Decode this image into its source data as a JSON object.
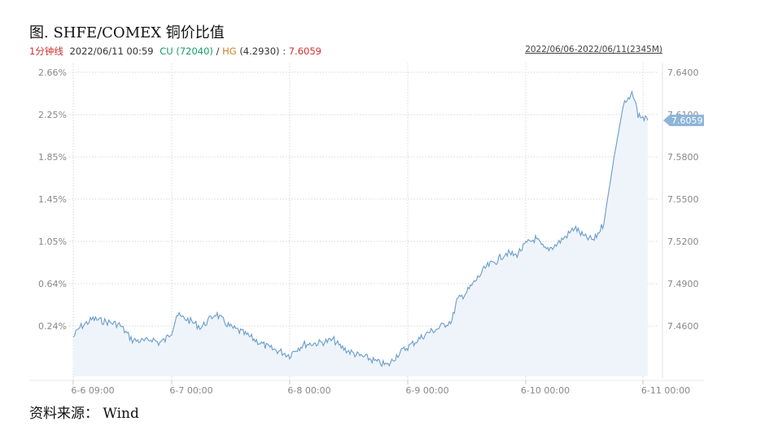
{
  "header": {
    "title": "图. SHFE/COMEX 铜价比值",
    "interval": "1分钟线",
    "timestamp": "2022/06/11 00:59",
    "cu_label": "CU",
    "cu_value": "(72040)",
    "separator": "/",
    "hg_label": "HG",
    "hg_value": "(4.2930)",
    "ratio_sep": ":",
    "ratio_value": "7.6059",
    "date_range": "2022/06/06-2022/06/11(2345M)"
  },
  "footer": {
    "source": "资料来源： Wind"
  },
  "colors": {
    "line": "#6b9ccb",
    "fill": "#eef4fa",
    "interval": "#d03030",
    "cu": "#1a9a6a",
    "hg": "#d08020",
    "ratio": "#d03030",
    "badge": "#8db4d9"
  },
  "chart_data": {
    "type": "area",
    "current_value_badge": "7.6059",
    "x_tick_labels": [
      "6-6 09:00",
      "6-7 00:00",
      "6-8 00:00",
      "6-9 00:00",
      "6-10 00:00",
      "6-11 00:00"
    ],
    "left_axis_labels": [
      "2.66%",
      "2.25%",
      "1.85%",
      "1.45%",
      "1.05%",
      "0.64%",
      "0.24%"
    ],
    "right_axis_labels": [
      "7.6400",
      "7.6100",
      "7.5800",
      "7.5500",
      "7.5200",
      "7.4900",
      "7.4600"
    ],
    "ylim": [
      7.43,
      7.64
    ],
    "grid": true,
    "series": [
      {
        "x": [
          "6-6 09:00",
          "6-6 10:00",
          "6-6 12:00",
          "6-6 14:00",
          "6-6 16:00",
          "6-6 18:00",
          "6-6 20:00",
          "6-6 21:00",
          "6-6 22:00",
          "6-6 23:00",
          "6-7 00:00",
          "6-7 01:00",
          "6-7 02:00",
          "6-7 03:00",
          "6-7 06:00",
          "6-7 09:00",
          "6-7 10:00",
          "6-7 12:00",
          "6-7 14:00",
          "6-7 16:00",
          "6-7 18:00",
          "6-7 20:00",
          "6-7 22:00",
          "6-8 00:00",
          "6-8 01:00",
          "6-8 02:00",
          "6-8 03:00",
          "6-8 06:00",
          "6-8 09:00",
          "6-8 10:00",
          "6-8 12:00",
          "6-8 14:00",
          "6-8 16:00",
          "6-8 18:00",
          "6-8 20:00",
          "6-8 22:00",
          "6-9 00:00",
          "6-9 02:00",
          "6-9 04:00",
          "6-9 06:00",
          "6-9 09:00",
          "6-9 10:00",
          "6-9 12:00",
          "6-9 14:00",
          "6-9 16:00",
          "6-9 18:00",
          "6-9 20:00",
          "6-9 22:00",
          "6-10 00:00",
          "6-10 02:00",
          "6-10 04:00",
          "6-10 06:00",
          "6-10 09:00",
          "6-10 10:00",
          "6-10 12:00",
          "6-10 14:00",
          "6-10 16:00",
          "6-10 18:00",
          "6-10 20:00",
          "6-10 21:00",
          "6-10 22:00",
          "6-10 23:00",
          "6-11 00:00",
          "6-11 00:59"
        ],
        "values": [
          7.452,
          7.459,
          7.465,
          7.463,
          7.461,
          7.45,
          7.449,
          7.451,
          7.448,
          7.45,
          7.456,
          7.468,
          7.466,
          7.465,
          7.459,
          7.469,
          7.465,
          7.459,
          7.456,
          7.452,
          7.448,
          7.444,
          7.442,
          7.439,
          7.443,
          7.445,
          7.447,
          7.448,
          7.45,
          7.446,
          7.442,
          7.439,
          7.437,
          7.434,
          7.432,
          7.44,
          7.445,
          7.45,
          7.455,
          7.458,
          7.464,
          7.478,
          7.484,
          7.493,
          7.502,
          7.506,
          7.512,
          7.51,
          7.518,
          7.522,
          7.514,
          7.517,
          7.526,
          7.53,
          7.523,
          7.521,
          7.533,
          7.578,
          7.617,
          7.62,
          7.625,
          7.61,
          7.608,
          7.6059
        ]
      }
    ]
  }
}
